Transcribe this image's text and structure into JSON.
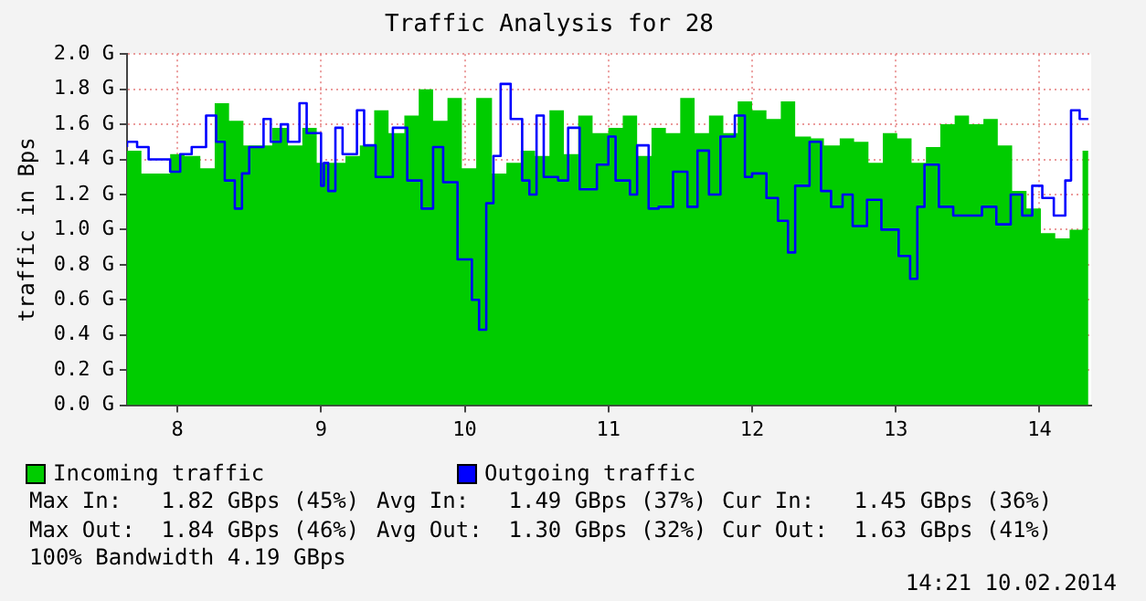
{
  "chart_data": {
    "type": "area",
    "title": "Traffic Analysis for 28",
    "ylabel": "traffic in Bps",
    "xlim": [
      7.65,
      14.36
    ],
    "xticks": [
      8,
      9,
      10,
      11,
      12,
      13,
      14
    ],
    "ylim": [
      0,
      2
    ],
    "yticks": [
      {
        "value": 0,
        "label": "0.0 G"
      },
      {
        "value": 0.2,
        "label": "0.2 G"
      },
      {
        "value": 0.4,
        "label": "0.4 G"
      },
      {
        "value": 0.6,
        "label": "0.6 G"
      },
      {
        "value": 0.8,
        "label": "0.8 G"
      },
      {
        "value": 1,
        "label": "1.0 G"
      },
      {
        "value": 1.2,
        "label": "1.2 G"
      },
      {
        "value": 1.4,
        "label": "1.4 G"
      },
      {
        "value": 1.6,
        "label": "1.6 G"
      },
      {
        "value": 1.8,
        "label": "1.8 G"
      },
      {
        "value": 2,
        "label": "2.0 G"
      }
    ],
    "grid": true,
    "legend": "bottom left",
    "series": [
      {
        "name": "Incoming traffic",
        "color": "#00cc00",
        "x": [
          7.65,
          7.75,
          7.85,
          7.95,
          8.05,
          8.16,
          8.26,
          8.36,
          8.46,
          8.56,
          8.66,
          8.77,
          8.87,
          8.97,
          9.07,
          9.17,
          9.27,
          9.37,
          9.47,
          9.58,
          9.68,
          9.78,
          9.88,
          9.98,
          10.08,
          10.19,
          10.29,
          10.39,
          10.49,
          10.59,
          10.69,
          10.79,
          10.89,
          11.0,
          11.1,
          11.2,
          11.3,
          11.4,
          11.5,
          11.6,
          11.7,
          11.8,
          11.9,
          12.0,
          12.1,
          12.2,
          12.3,
          12.41,
          12.5,
          12.61,
          12.71,
          12.81,
          12.91,
          13.01,
          13.11,
          13.21,
          13.31,
          13.41,
          13.51,
          13.61,
          13.71,
          13.81,
          13.91,
          14.01,
          14.11,
          14.21,
          14.3,
          14.34
        ],
        "values": [
          1.37,
          1.45,
          1.32,
          1.32,
          1.43,
          1.42,
          1.35,
          1.72,
          1.62,
          1.48,
          1.48,
          1.58,
          1.48,
          1.58,
          1.38,
          1.38,
          1.42,
          1.48,
          1.68,
          1.55,
          1.65,
          1.8,
          1.62,
          1.75,
          1.35,
          1.75,
          1.32,
          1.38,
          1.45,
          1.42,
          1.68,
          1.43,
          1.65,
          1.55,
          1.58,
          1.65,
          1.42,
          1.58,
          1.55,
          1.75,
          1.55,
          1.65,
          1.55,
          1.73,
          1.68,
          1.63,
          1.73,
          1.53,
          1.52,
          1.48,
          1.52,
          1.5,
          1.38,
          1.55,
          1.52,
          1.38,
          1.47,
          1.6,
          1.65,
          1.6,
          1.63,
          1.48,
          1.22,
          1.12,
          0.98,
          0.95,
          1.0,
          1.45
        ]
      },
      {
        "name": "Outgoing traffic",
        "type": "step",
        "color": "#0000ff",
        "x": [
          7.65,
          7.72,
          7.8,
          7.95,
          8.02,
          8.1,
          8.2,
          8.27,
          8.33,
          8.4,
          8.45,
          8.5,
          8.6,
          8.65,
          8.72,
          8.77,
          8.85,
          8.9,
          9.0,
          9.02,
          9.05,
          9.1,
          9.15,
          9.25,
          9.3,
          9.38,
          9.5,
          9.6,
          9.7,
          9.78,
          9.85,
          9.95,
          10.05,
          10.1,
          10.15,
          10.2,
          10.25,
          10.32,
          10.4,
          10.45,
          10.5,
          10.55,
          10.65,
          10.72,
          10.8,
          10.92,
          11.0,
          11.05,
          11.15,
          11.2,
          11.28,
          11.35,
          11.45,
          11.55,
          11.62,
          11.7,
          11.78,
          11.88,
          11.95,
          12.0,
          12.1,
          12.18,
          12.25,
          12.3,
          12.4,
          12.48,
          12.55,
          12.63,
          12.7,
          12.8,
          12.9,
          13.02,
          13.1,
          13.15,
          13.2,
          13.3,
          13.4,
          13.5,
          13.6,
          13.7,
          13.8,
          13.88,
          13.95,
          14.02,
          14.1,
          14.18,
          14.22,
          14.28,
          14.34
        ],
        "values": [
          1.47,
          1.5,
          1.47,
          1.4,
          1.33,
          1.43,
          1.47,
          1.65,
          1.5,
          1.28,
          1.12,
          1.32,
          1.47,
          1.63,
          1.5,
          1.6,
          1.5,
          1.72,
          1.55,
          1.25,
          1.38,
          1.22,
          1.58,
          1.43,
          1.68,
          1.48,
          1.3,
          1.58,
          1.28,
          1.12,
          1.47,
          1.27,
          0.83,
          0.6,
          0.43,
          1.15,
          1.42,
          1.83,
          1.63,
          1.28,
          1.2,
          1.65,
          1.3,
          1.28,
          1.58,
          1.23,
          1.37,
          1.53,
          1.28,
          1.2,
          1.48,
          1.12,
          1.13,
          1.33,
          1.13,
          1.45,
          1.2,
          1.53,
          1.65,
          1.3,
          1.32,
          1.18,
          1.05,
          0.87,
          1.25,
          1.5,
          1.22,
          1.13,
          1.2,
          1.02,
          1.17,
          1.0,
          0.85,
          0.72,
          1.13,
          1.37,
          1.13,
          1.08,
          1.08,
          1.13,
          1.03,
          1.2,
          1.08,
          1.25,
          1.18,
          1.08,
          1.28,
          1.68,
          1.63
        ]
      }
    ],
    "annotations": [
      "Max In:   1.82 GBps (45%)",
      "Avg In:   1.49 GBps (37%)",
      "Cur In:   1.45 GBps (36%)",
      "Max Out:  1.84 GBps (46%)",
      "Avg Out:  1.30 GBps (32%)",
      "Cur Out:  1.63 GBps (41%)",
      "100% Bandwidth 4.19 GBps",
      "14:21 10.02.2014"
    ]
  }
}
